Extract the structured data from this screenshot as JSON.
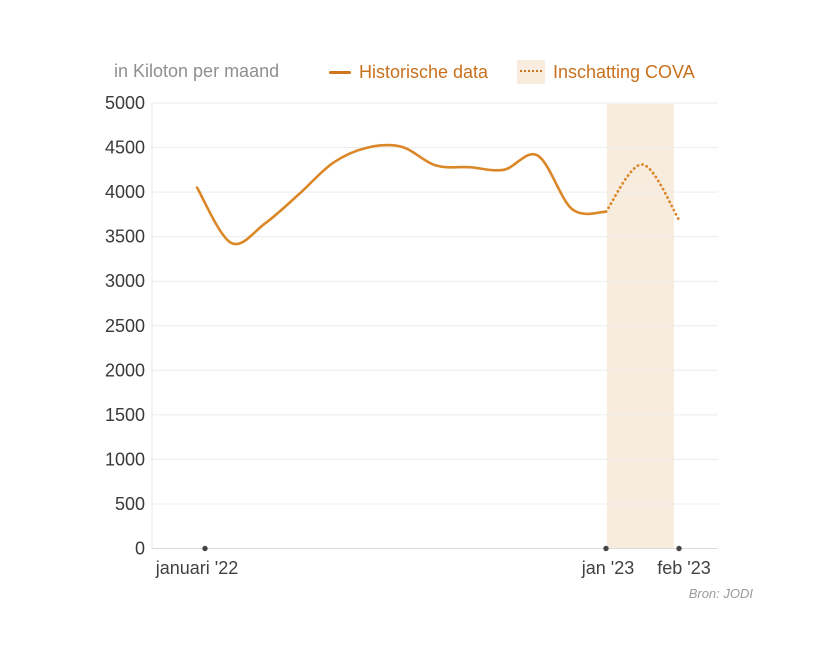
{
  "header": {
    "unit_label": "in Kiloton per maand",
    "legend": [
      {
        "label": "Historische data",
        "swatch": "solid-line"
      },
      {
        "label": "Inschatting COVA",
        "swatch": "dotted-line-on-band"
      }
    ]
  },
  "source": "Bron: JODI",
  "colors": {
    "line_orange": "#db8728",
    "legend_orange": "#c9701d",
    "forecast_band": "#f8ecdf",
    "gridline": "#ececec",
    "axis_line": "#dcdcdc",
    "y_axis_line": "#e7e7e7",
    "tick_dot": "#454545",
    "y_label": "#3a3a3a",
    "x_label": "#414141"
  },
  "chart_data": {
    "type": "line",
    "title": "",
    "ylabel": "in Kiloton per maand",
    "xlabel": "",
    "ylim": [
      0,
      5000
    ],
    "yticks": [
      0,
      500,
      1000,
      1500,
      2000,
      2500,
      3000,
      3500,
      4000,
      4500,
      5000
    ],
    "x_axis_tick_labels": [
      "januari '22",
      "jan '23",
      "feb '23"
    ],
    "grid": true,
    "legend_position": "top",
    "series": [
      {
        "name": "Historische data",
        "line_style": "solid",
        "x_start": "januari '22",
        "x_end": "jan '23",
        "x_interval": "monthly",
        "values": [
          4050,
          3430,
          3650,
          3980,
          4330,
          4500,
          4510,
          4300,
          4280,
          4250,
          4410,
          3810,
          3780
        ]
      },
      {
        "name": "Inschatting COVA",
        "line_style": "dotted",
        "x_start": "jan '23",
        "x_end": "feb '23",
        "x_interval": "half-monthly",
        "values": [
          3780,
          4310,
          3690
        ]
      }
    ],
    "forecast_band": {
      "from": "jan '23",
      "to": "feb '23"
    }
  }
}
